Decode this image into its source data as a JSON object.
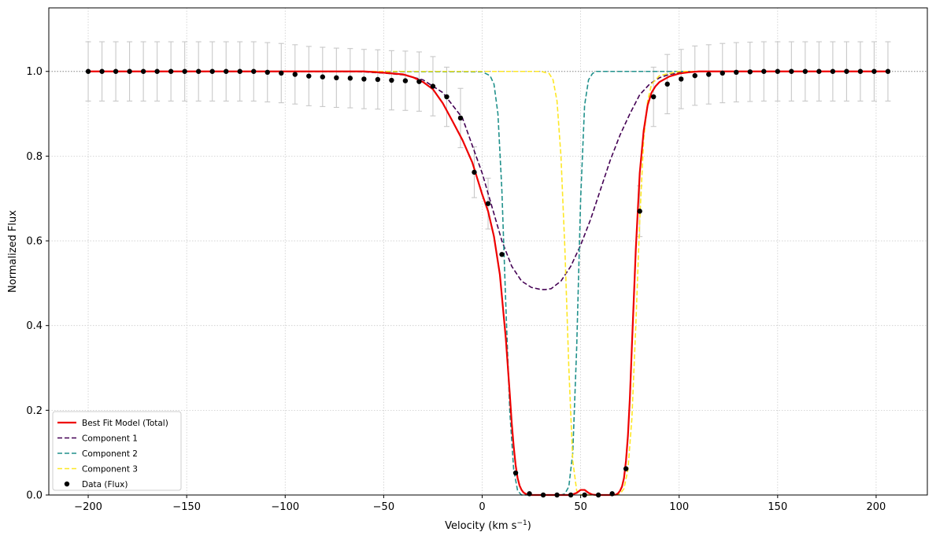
{
  "chart_data": {
    "type": "line",
    "title": "",
    "xlabel": "Velocity (km s",
    "xlabel_sup": "−1",
    "xlabel_end": ")",
    "ylabel": "Normalized Flux",
    "xlim": [
      -220,
      226
    ],
    "ylim": [
      0.0,
      1.15
    ],
    "xticks": [
      -200,
      -150,
      -100,
      -50,
      0,
      50,
      100,
      150,
      200
    ],
    "xtick_labels": [
      "−200",
      "−150",
      "−100",
      "−50",
      "0",
      "50",
      "100",
      "150",
      "200"
    ],
    "yticks": [
      0.0,
      0.2,
      0.4,
      0.6,
      0.8,
      1.0
    ],
    "ytick_labels": [
      "0.0",
      "0.2",
      "0.4",
      "0.6",
      "0.8",
      "1.0"
    ],
    "grid": true,
    "continuum_line": 1.0,
    "legend_position": "lower-left",
    "colors": {
      "total": "#ee0000",
      "component_1": "#440154",
      "component_2": "#21918c",
      "component_3": "#fde725",
      "data": "#000000",
      "errorbar": "#c8c8c8",
      "grid": "#cccccc"
    },
    "series": [
      {
        "name": "Best Fit Model (Total)",
        "style": "solid",
        "x": [
          -200,
          -180,
          -160,
          -140,
          -120,
          -100,
          -80,
          -60,
          -50,
          -40,
          -35,
          -30,
          -25,
          -20,
          -15,
          -10,
          -5,
          0,
          3,
          6,
          9,
          12,
          14,
          15,
          16,
          17,
          18,
          19,
          20,
          21,
          22,
          23,
          25,
          30,
          35,
          40,
          45,
          48,
          50,
          52,
          54,
          56,
          58,
          60,
          62,
          64,
          66,
          68,
          69,
          70,
          71,
          72,
          73,
          74,
          75,
          76,
          78,
          80,
          82,
          84,
          86,
          88,
          90,
          95,
          100,
          105,
          110,
          120,
          140,
          160,
          180,
          206
        ],
        "values": [
          1.0,
          1.0,
          1.0,
          1.0,
          1.0,
          1.0,
          1.0,
          1.0,
          0.997,
          0.993,
          0.986,
          0.975,
          0.958,
          0.925,
          0.882,
          0.838,
          0.785,
          0.71,
          0.67,
          0.61,
          0.52,
          0.37,
          0.24,
          0.17,
          0.115,
          0.07,
          0.04,
          0.022,
          0.012,
          0.006,
          0.003,
          0.001,
          0.0,
          0.0,
          0.0,
          0.0,
          0.0,
          0.005,
          0.012,
          0.012,
          0.005,
          0.001,
          0.0,
          0.0,
          0.0,
          0.0,
          0.0,
          0.001,
          0.004,
          0.01,
          0.02,
          0.04,
          0.08,
          0.14,
          0.23,
          0.35,
          0.58,
          0.76,
          0.86,
          0.92,
          0.95,
          0.965,
          0.975,
          0.988,
          0.995,
          0.998,
          1.0,
          1.0,
          1.0,
          1.0,
          1.0,
          1.0
        ]
      },
      {
        "name": "Component 1",
        "style": "dashed",
        "x": [
          -200,
          -100,
          -60,
          -50,
          -40,
          -30,
          -20,
          -10,
          0,
          5,
          10,
          15,
          20,
          25,
          30,
          32,
          35,
          40,
          45,
          50,
          55,
          60,
          65,
          70,
          75,
          80,
          85,
          90,
          95,
          100,
          110,
          120,
          140,
          160,
          206
        ],
        "values": [
          1.0,
          1.0,
          0.999,
          0.996,
          0.992,
          0.98,
          0.95,
          0.89,
          0.76,
          0.68,
          0.6,
          0.54,
          0.505,
          0.49,
          0.485,
          0.485,
          0.487,
          0.505,
          0.54,
          0.59,
          0.65,
          0.72,
          0.79,
          0.85,
          0.9,
          0.945,
          0.97,
          0.985,
          0.993,
          0.997,
          1.0,
          1.0,
          1.0,
          1.0,
          1.0
        ]
      },
      {
        "name": "Component 2",
        "style": "dashed",
        "x": [
          -200,
          0,
          4,
          6,
          8,
          10,
          12,
          14,
          16,
          18,
          20,
          25,
          30,
          35,
          40,
          42,
          44,
          46,
          48,
          50,
          52,
          54,
          56,
          58,
          60,
          65,
          70,
          206
        ],
        "values": [
          1.0,
          0.999,
          0.99,
          0.97,
          0.9,
          0.72,
          0.45,
          0.2,
          0.06,
          0.01,
          0.0,
          0.0,
          0.0,
          0.0,
          0.0,
          0.003,
          0.02,
          0.1,
          0.35,
          0.7,
          0.92,
          0.98,
          0.995,
          1.0,
          1.0,
          1.0,
          1.0,
          1.0
        ]
      },
      {
        "name": "Component 3",
        "style": "dashed",
        "x": [
          -200,
          30,
          34,
          36,
          38,
          40,
          42,
          44,
          46,
          48,
          50,
          52,
          55,
          60,
          65,
          68,
          70,
          72,
          74,
          76,
          78,
          80,
          82,
          84,
          86,
          90,
          100,
          206
        ],
        "values": [
          1.0,
          1.0,
          0.995,
          0.98,
          0.93,
          0.8,
          0.58,
          0.3,
          0.08,
          0.01,
          0.0,
          0.0,
          0.0,
          0.0,
          0.0,
          0.0,
          0.003,
          0.015,
          0.06,
          0.18,
          0.4,
          0.65,
          0.84,
          0.93,
          0.97,
          0.99,
          1.0,
          1.0
        ]
      }
    ],
    "data_points": {
      "name": "Data (Flux)",
      "x": [
        -200,
        -193,
        -186,
        -179,
        -172,
        -165,
        -158,
        -151,
        -144,
        -137,
        -130,
        -123,
        -116,
        -109,
        -102,
        -95,
        -88,
        -81,
        -74,
        -67,
        -60,
        -53,
        -46,
        -39,
        -32,
        -25,
        -18,
        -11,
        -4,
        3,
        10,
        17,
        24,
        31,
        38,
        45,
        52,
        59,
        66,
        73,
        80,
        87,
        94,
        101,
        108,
        115,
        122,
        129,
        136,
        143,
        150,
        157,
        164,
        171,
        178,
        185,
        192,
        199,
        206
      ],
      "values": [
        1.0,
        1.0,
        1.0,
        1.0,
        1.0,
        1.0,
        1.0,
        1.0,
        1.0,
        1.0,
        1.0,
        1.0,
        1.0,
        0.998,
        0.996,
        0.993,
        0.989,
        0.987,
        0.985,
        0.984,
        0.982,
        0.981,
        0.979,
        0.978,
        0.976,
        0.965,
        0.94,
        0.89,
        0.762,
        0.688,
        0.568,
        0.052,
        0.003,
        0.0,
        0.0,
        0.0,
        0.0,
        0.0,
        0.003,
        0.062,
        0.67,
        0.94,
        0.97,
        0.982,
        0.99,
        0.993,
        0.996,
        0.998,
        0.999,
        1.0,
        1.0,
        1.0,
        1.0,
        1.0,
        1.0,
        1.0,
        1.0,
        1.0,
        1.0
      ],
      "errors": [
        0.07,
        0.07,
        0.07,
        0.07,
        0.07,
        0.07,
        0.07,
        0.07,
        0.07,
        0.07,
        0.07,
        0.07,
        0.07,
        0.07,
        0.07,
        0.07,
        0.07,
        0.07,
        0.07,
        0.07,
        0.07,
        0.07,
        0.07,
        0.07,
        0.07,
        0.07,
        0.07,
        0.07,
        0.06,
        0.06,
        0.0,
        0.0,
        0.0,
        0.0,
        0.0,
        0.0,
        0.0,
        0.0,
        0.0,
        0.0,
        0.06,
        0.07,
        0.07,
        0.07,
        0.07,
        0.07,
        0.07,
        0.07,
        0.07,
        0.07,
        0.07,
        0.07,
        0.07,
        0.07,
        0.07,
        0.07,
        0.07,
        0.07,
        0.07
      ]
    }
  }
}
